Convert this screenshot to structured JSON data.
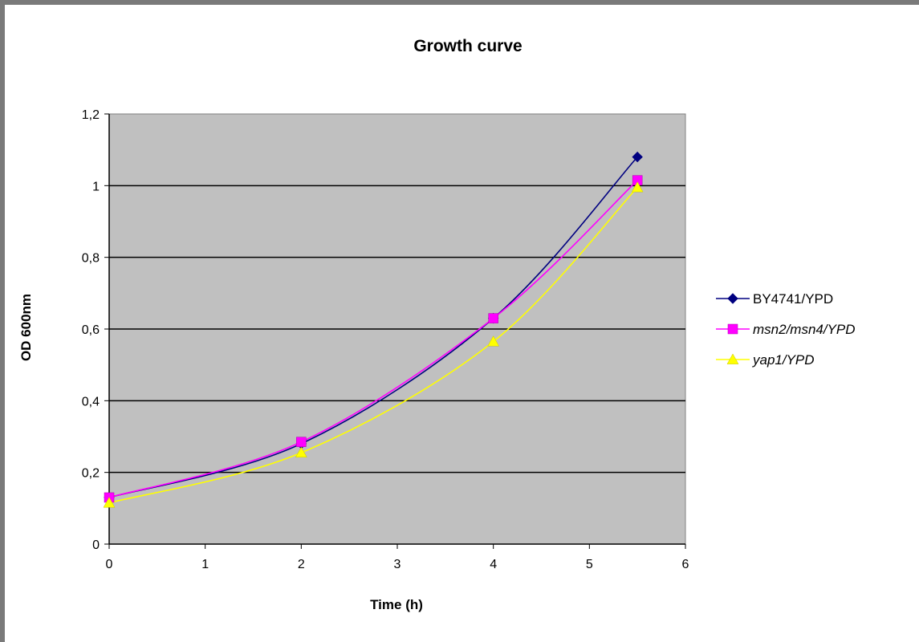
{
  "chart_data": {
    "type": "line",
    "title": "Growth curve",
    "xlabel": "Time (h)",
    "ylabel": "OD 600nm",
    "xlim": [
      0,
      6
    ],
    "ylim": [
      0,
      1.2
    ],
    "x_ticks": [
      "0",
      "1",
      "2",
      "3",
      "4",
      "5",
      "6"
    ],
    "y_ticks": [
      "0",
      "0,2",
      "0,4",
      "0,6",
      "0,8",
      "1",
      "1,2"
    ],
    "grid": "horizontal",
    "legend_position": "right",
    "series": [
      {
        "name": "BY4741/YPD",
        "color": "#000080",
        "marker": "diamond",
        "italic": false,
        "x": [
          0,
          2,
          4,
          5.5
        ],
        "y": [
          0.13,
          0.28,
          0.63,
          1.08
        ]
      },
      {
        "name": "msn2/msn4/YPD",
        "color": "#ff00ff",
        "marker": "square",
        "italic": true,
        "x": [
          0,
          2,
          4,
          5.5
        ],
        "y": [
          0.13,
          0.285,
          0.63,
          1.015
        ]
      },
      {
        "name": "yap1/YPD",
        "color": "#ffff00",
        "marker": "triangle",
        "italic": true,
        "x": [
          0,
          2,
          4,
          5.5
        ],
        "y": [
          0.115,
          0.255,
          0.565,
          0.995
        ]
      }
    ]
  }
}
